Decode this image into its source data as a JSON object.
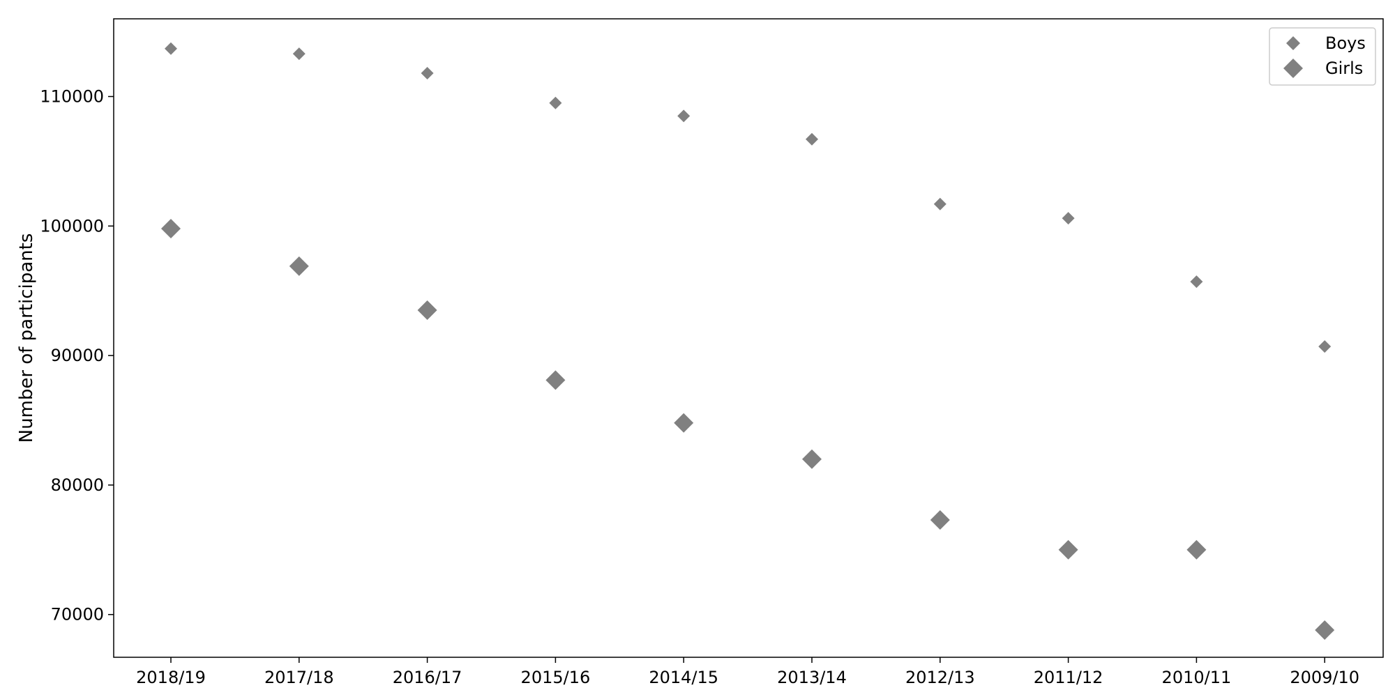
{
  "chart_data": {
    "type": "scatter",
    "title": "",
    "xlabel": "",
    "ylabel": "Number of participants",
    "categories": [
      "2018/19",
      "2017/18",
      "2016/17",
      "2015/16",
      "2014/15",
      "2013/14",
      "2012/13",
      "2011/12",
      "2010/11",
      "2009/10"
    ],
    "series": [
      {
        "name": "Boys",
        "marker": "diamond-small",
        "color": "#808080",
        "values": [
          113700,
          113300,
          111800,
          109500,
          108500,
          106700,
          101700,
          100600,
          95700,
          90700
        ]
      },
      {
        "name": "Girls",
        "marker": "diamond-large",
        "color": "#808080",
        "values": [
          99800,
          96900,
          93500,
          88100,
          84800,
          82000,
          77300,
          75000,
          75000,
          68800
        ]
      }
    ],
    "yticks": [
      70000,
      80000,
      90000,
      100000,
      110000
    ],
    "ylim": [
      66700,
      116000
    ],
    "grid": false,
    "legend_position": "top-right"
  }
}
